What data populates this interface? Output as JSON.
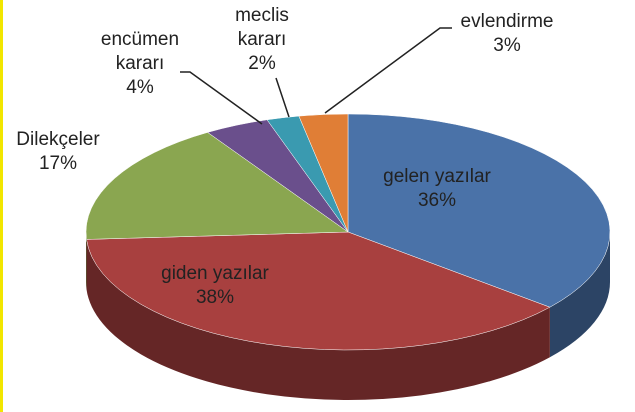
{
  "chart_data": {
    "type": "pie",
    "categories": [
      "gelen yazılar",
      "giden yazılar",
      "Dilekçeler",
      "encümen kararı",
      "meclis kararı",
      "evlendirme"
    ],
    "values": [
      36,
      38,
      17,
      4,
      2,
      3
    ],
    "value_labels": [
      "36%",
      "38%",
      "17%",
      "4%",
      "2%",
      "3%"
    ],
    "colors": [
      "#4a72a8",
      "#a8403f",
      "#8aa650",
      "#6a4f8c",
      "#3a9ab0",
      "#e07e36"
    ]
  }
}
